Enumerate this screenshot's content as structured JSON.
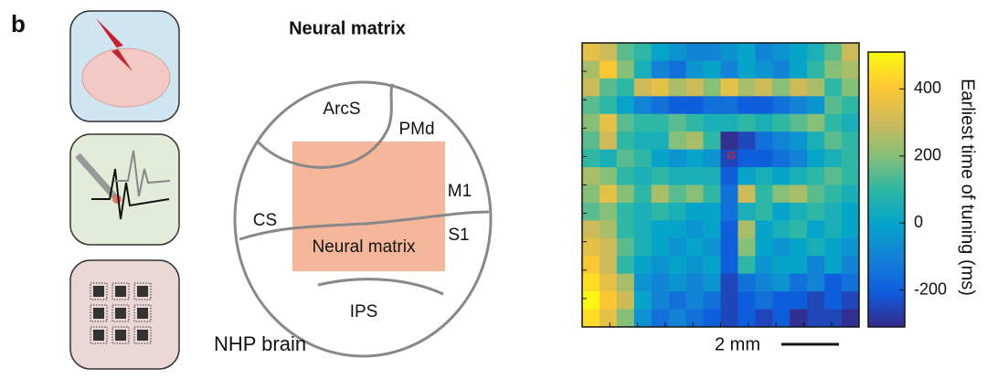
{
  "panel_label": "b",
  "diagram": {
    "title": "Neural matrix",
    "regions": [
      "ArcS",
      "PMd",
      "M1",
      "CS",
      "S1",
      "IPS"
    ],
    "matrix_label": "Neural matrix",
    "brain_label": "NHP brain"
  },
  "chart_data": {
    "type": "heatmap",
    "colorbar_label": "Earliest time of tuning (ms)",
    "scale_bar": "2 mm",
    "zlim": [
      -310,
      510
    ],
    "zticks": [
      -200,
      0,
      200,
      400
    ],
    "colormap": [
      "#352a87",
      "#0f5cdd",
      "#1481d6",
      "#06a4ca",
      "#2eb7a4",
      "#87bf77",
      "#d1bb59",
      "#fec832",
      "#f9fb0e"
    ],
    "values": [
      [
        350,
        300,
        150,
        100,
        0,
        -50,
        -100,
        -100,
        -50,
        0,
        -100,
        -50,
        0,
        50,
        150,
        300
      ],
      [
        250,
        400,
        200,
        50,
        -100,
        -150,
        -50,
        0,
        -100,
        0,
        -50,
        -100,
        0,
        100,
        200,
        250
      ],
      [
        300,
        150,
        100,
        300,
        350,
        250,
        300,
        200,
        350,
        250,
        300,
        200,
        300,
        250,
        100,
        200
      ],
      [
        150,
        100,
        0,
        -100,
        -150,
        -200,
        -200,
        -150,
        -150,
        -200,
        -200,
        -150,
        -100,
        -50,
        150,
        100
      ],
      [
        200,
        350,
        150,
        100,
        100,
        150,
        100,
        50,
        50,
        100,
        50,
        100,
        150,
        200,
        100,
        50
      ],
      [
        150,
        300,
        100,
        50,
        50,
        200,
        250,
        100,
        -300,
        -250,
        -150,
        -100,
        -50,
        50,
        150,
        100
      ],
      [
        100,
        50,
        150,
        100,
        0,
        -50,
        0,
        -50,
        -250,
        -200,
        -200,
        -150,
        -100,
        0,
        50,
        100
      ],
      [
        250,
        200,
        100,
        50,
        100,
        50,
        50,
        50,
        -200,
        0,
        50,
        0,
        50,
        100,
        150,
        100
      ],
      [
        200,
        350,
        200,
        100,
        250,
        150,
        200,
        100,
        -150,
        300,
        100,
        200,
        250,
        150,
        100,
        50
      ],
      [
        150,
        200,
        100,
        50,
        100,
        50,
        0,
        0,
        -150,
        50,
        100,
        0,
        50,
        100,
        50,
        0
      ],
      [
        300,
        250,
        100,
        50,
        0,
        0,
        -50,
        0,
        -200,
        250,
        0,
        50,
        100,
        0,
        50,
        0
      ],
      [
        350,
        300,
        150,
        50,
        0,
        -50,
        0,
        -50,
        -200,
        200,
        0,
        -50,
        0,
        50,
        0,
        -50
      ],
      [
        400,
        300,
        100,
        0,
        -50,
        0,
        -50,
        0,
        -200,
        100,
        -50,
        0,
        0,
        -100,
        0,
        -100
      ],
      [
        450,
        350,
        250,
        -50,
        -100,
        -50,
        -100,
        -50,
        -250,
        -150,
        -100,
        -50,
        -150,
        -100,
        -200,
        -150
      ],
      [
        500,
        400,
        300,
        0,
        -100,
        -150,
        -100,
        -150,
        -250,
        -200,
        -150,
        -200,
        -200,
        -250,
        -200,
        -250
      ],
      [
        450,
        350,
        200,
        -50,
        -150,
        -100,
        -150,
        -200,
        -250,
        -200,
        -250,
        -200,
        -300,
        -250,
        -250,
        -300
      ]
    ]
  }
}
